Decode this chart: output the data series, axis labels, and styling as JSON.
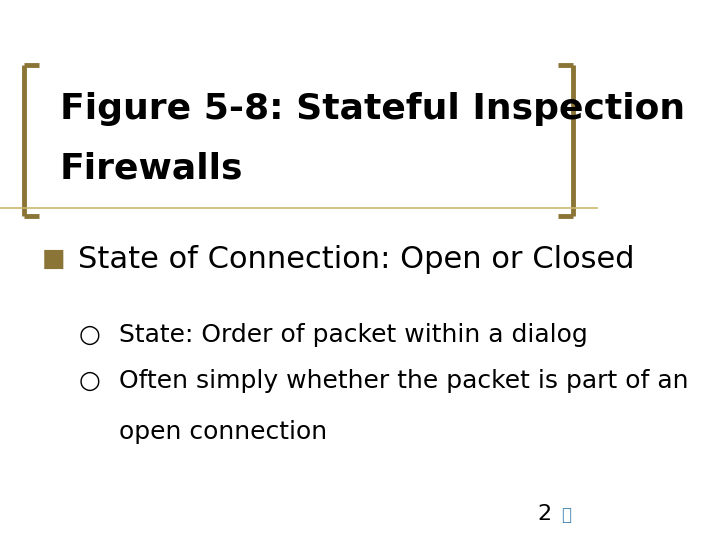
{
  "title_line1": "Figure 5-8: Stateful Inspection",
  "title_line2": "Firewalls",
  "bg_color": "#ffffff",
  "title_color": "#000000",
  "title_fontsize": 26,
  "bracket_color": "#8B7536",
  "separator_color": "#c8b96e",
  "bullet1_text": "State of Connection: Open or Closed",
  "bullet1_color": "#8B7536",
  "bullet1_fontsize": 22,
  "sub1_text": "State: Order of packet within a dialog",
  "sub2_line1": "Often simply whether the packet is part of an",
  "sub2_line2": "open connection",
  "sub_fontsize": 18,
  "sub_color": "#000000",
  "page_number": "2",
  "page_fontsize": 16
}
